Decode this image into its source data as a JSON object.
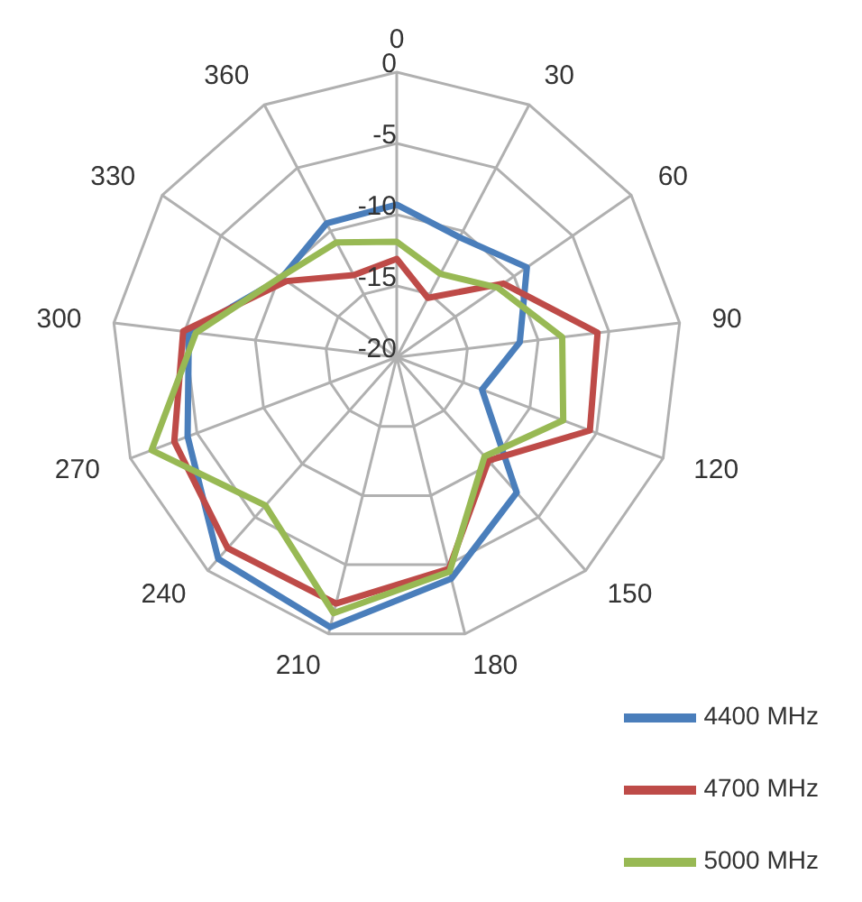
{
  "chart_data": {
    "type": "radar",
    "categories": [
      "0",
      "30",
      "60",
      "90",
      "120",
      "150",
      "180",
      "210",
      "240",
      "270",
      "300",
      "330",
      "360"
    ],
    "series": [
      {
        "name": "4400 MHz",
        "color": "#4a7ebb",
        "values": [
          -9.3,
          -10.5,
          -8.9,
          -11.3,
          -13.6,
          -7.3,
          -4,
          -0.5,
          -1.1,
          -4.3,
          -5.3,
          -10.2,
          -9.4
        ]
      },
      {
        "name": "4700 MHz",
        "color": "#be4b48",
        "values": [
          -13.1,
          -15.3,
          -10.9,
          -5.8,
          -5.5,
          -10.3,
          -4.7,
          -2.2,
          -2.1,
          -3.3,
          -4.9,
          -10.6,
          -13.5
        ]
      },
      {
        "name": "5000 MHz",
        "color": "#98b954",
        "values": [
          -11.9,
          -13.4,
          -11.4,
          -8.3,
          -7.5,
          -10.7,
          -4.5,
          -1.5,
          -6.1,
          -1.6,
          -5.8,
          -10.1,
          -10.9
        ]
      }
    ],
    "ylim": [
      -20,
      0
    ],
    "yticks": [
      -20,
      -15,
      -10,
      -5,
      0
    ],
    "grid": true,
    "legend": "bottom right"
  }
}
